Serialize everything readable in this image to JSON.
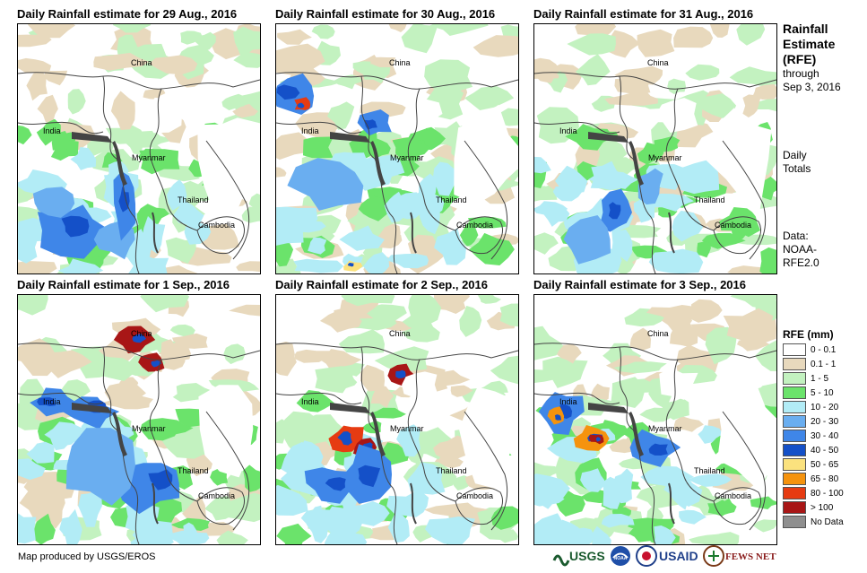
{
  "panels": [
    {
      "title": "Daily Rainfall estimate for 29 Aug., 2016",
      "labels": [
        "China",
        "India",
        "Myanmar",
        "Thailand",
        "Cambodia"
      ]
    },
    {
      "title": "Daily Rainfall estimate for 30 Aug., 2016",
      "labels": [
        "China",
        "India",
        "Myanmar",
        "Thailand",
        "Cambodia"
      ]
    },
    {
      "title": "Daily Rainfall estimate for 31 Aug., 2016",
      "labels": [
        "China",
        "India",
        "Myanmar",
        "Thailand",
        "Cambodia"
      ]
    },
    {
      "title": "Daily Rainfall estimate for 1 Sep., 2016",
      "labels": [
        "China",
        "India",
        "Myanmar",
        "Thailand",
        "Cambodia"
      ]
    },
    {
      "title": "Daily Rainfall estimate for 2 Sep., 2016",
      "labels": [
        "China",
        "India",
        "Myanmar",
        "Thailand",
        "Cambodia"
      ]
    },
    {
      "title": "Daily Rainfall estimate for 3 Sep., 2016",
      "labels": [
        "China",
        "India",
        "Myanmar",
        "Thailand",
        "Cambodia"
      ]
    }
  ],
  "sidebar": {
    "title_lines": [
      "Rainfall",
      "Estimate",
      "(RFE)"
    ],
    "through": "through",
    "date": "Sep 3, 2016",
    "daily": "Daily",
    "totals": "Totals",
    "data_label": "Data:",
    "data_src1": "NOAA-",
    "data_src2": "RFE2.0"
  },
  "legend": {
    "title": "RFE (mm)",
    "items": [
      {
        "label": "0 - 0.1",
        "color": "#ffffff"
      },
      {
        "label": "0.1 - 1",
        "color": "#e8d9bd"
      },
      {
        "label": "1 - 5",
        "color": "#c3f2c0"
      },
      {
        "label": "5 - 10",
        "color": "#6be36b"
      },
      {
        "label": "10 - 20",
        "color": "#b2ecf6"
      },
      {
        "label": "20 - 30",
        "color": "#6aaef0"
      },
      {
        "label": "30 - 40",
        "color": "#3f86e8"
      },
      {
        "label": "40 - 50",
        "color": "#1450c8"
      },
      {
        "label": "50 - 65",
        "color": "#fbe27e"
      },
      {
        "label": "65 - 80",
        "color": "#f5930e"
      },
      {
        "label": "80 - 100",
        "color": "#e63b12"
      },
      {
        "label": "> 100",
        "color": "#a81616"
      },
      {
        "label": "No Data",
        "color": "#8f8f8f"
      }
    ]
  },
  "credit": "Map produced by USGS/EROS",
  "logos": [
    "USGS",
    "NOAA",
    "USAID",
    "FEWS NET"
  ]
}
